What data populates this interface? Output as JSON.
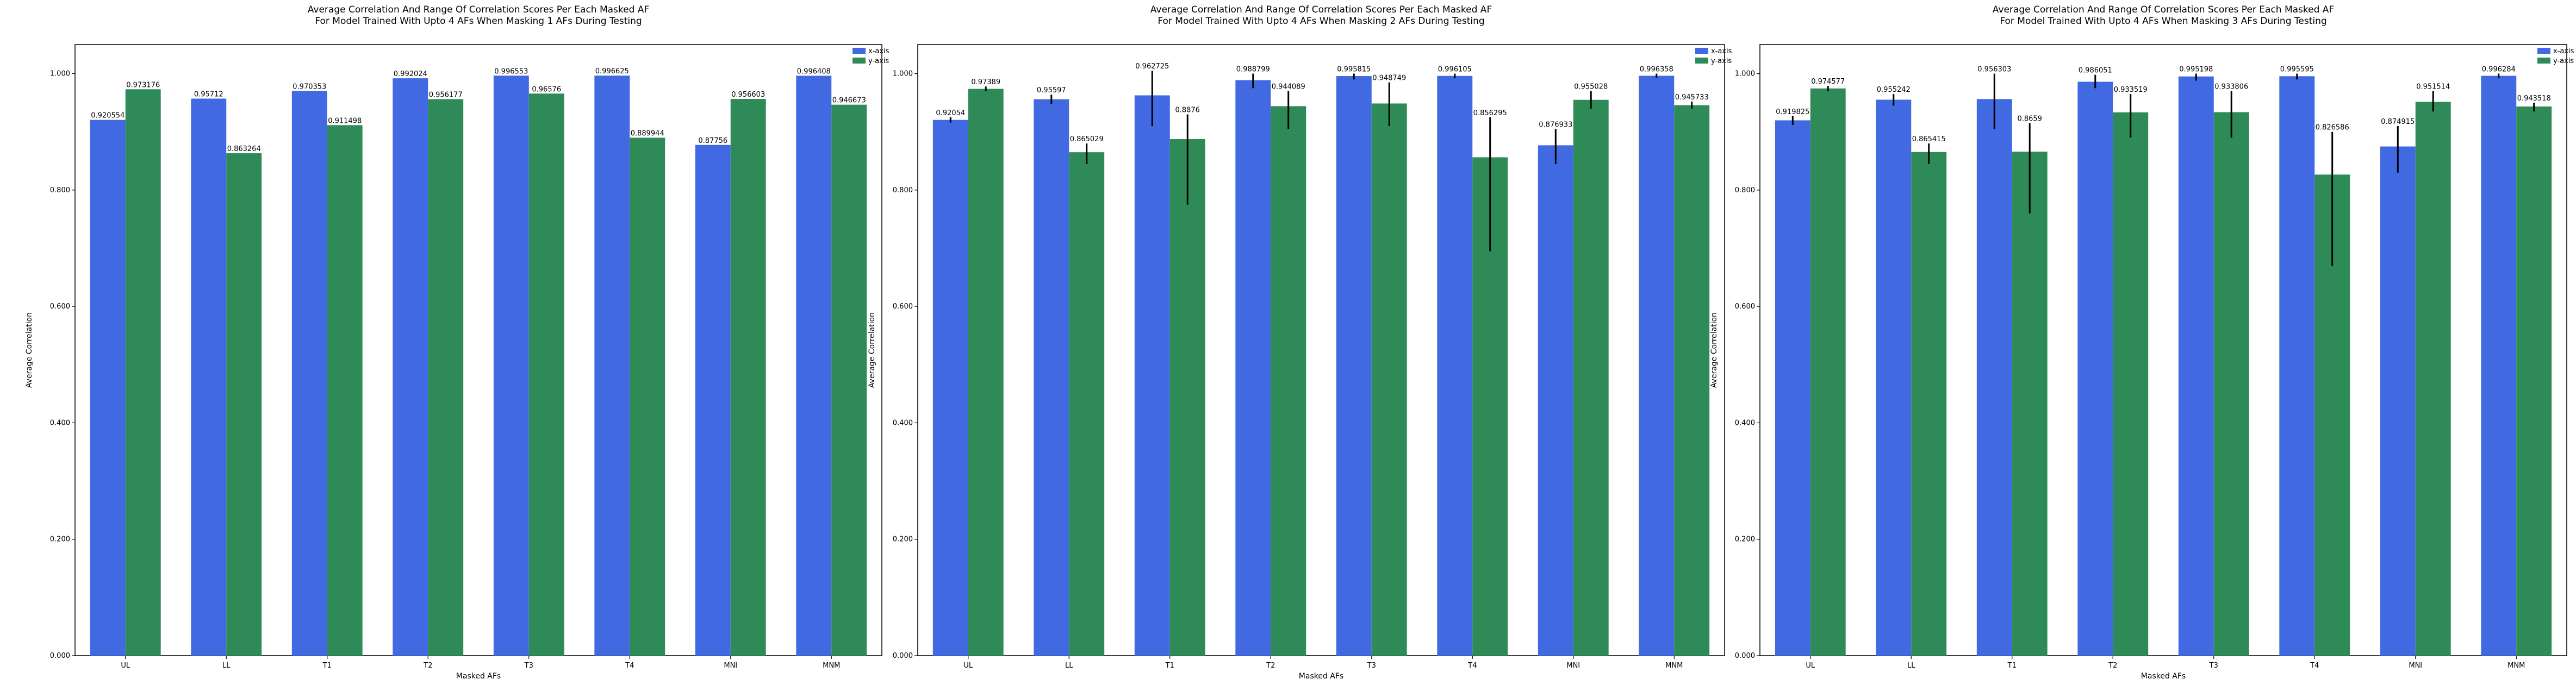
{
  "chart_data": [
    {
      "type": "bar",
      "title": "Average Correlation And Range Of Correlation Scores Per Each Masked AF\nFor Model Trained With Upto 4 AFs When Masking 1 AFs During Testing",
      "xlabel": "Masked AFs",
      "ylabel": "Average Correlation",
      "ylim": [
        0,
        1.05
      ],
      "yticks": [
        "0.000",
        "0.200",
        "0.400",
        "0.600",
        "0.800",
        "1.000"
      ],
      "legend_position": "top-right",
      "categories": [
        "UL",
        "LL",
        "T1",
        "T2",
        "T3",
        "T4",
        "MNI",
        "MNM"
      ],
      "series": [
        {
          "name": "x-axis",
          "color": "#4169e1",
          "values": [
            0.920554,
            0.95712,
            0.970353,
            0.992024,
            0.996553,
            0.996625,
            0.87756,
            0.996408
          ],
          "labels": [
            "0.920554",
            "0.95712",
            "0.970353",
            "0.992024",
            "0.996553",
            "0.996625",
            "0.87756",
            "0.996408"
          ],
          "err_low": [
            0.920554,
            0.95712,
            0.970353,
            0.992024,
            0.996553,
            0.996625,
            0.87756,
            0.996408
          ],
          "err_high": [
            0.920554,
            0.95712,
            0.970353,
            0.992024,
            0.996553,
            0.996625,
            0.87756,
            0.996408
          ]
        },
        {
          "name": "y-axis",
          "color": "#2e8b57",
          "values": [
            0.973176,
            0.863264,
            0.911498,
            0.956177,
            0.96576,
            0.889944,
            0.956603,
            0.946673
          ],
          "labels": [
            "0.973176",
            "0.863264",
            "0.911498",
            "0.956177",
            "0.96576",
            "0.889944",
            "0.956603",
            "0.946673"
          ],
          "err_low": [
            0.973176,
            0.863264,
            0.911498,
            0.956177,
            0.96576,
            0.889944,
            0.956603,
            0.946673
          ],
          "err_high": [
            0.973176,
            0.863264,
            0.911498,
            0.956177,
            0.96576,
            0.889944,
            0.956603,
            0.946673
          ]
        }
      ]
    },
    {
      "type": "bar",
      "title": "Average Correlation And Range Of Correlation Scores Per Each Masked AF\nFor Model Trained With Upto 4 AFs When Masking 2 AFs During Testing",
      "xlabel": "Masked AFs",
      "ylabel": "Average Correlation",
      "ylim": [
        0,
        1.05
      ],
      "yticks": [
        "0.000",
        "0.200",
        "0.400",
        "0.600",
        "0.800",
        "1.000"
      ],
      "legend_position": "top-right",
      "categories": [
        "UL",
        "LL",
        "T1",
        "T2",
        "T3",
        "T4",
        "MNI",
        "MNM"
      ],
      "series": [
        {
          "name": "x-axis",
          "color": "#4169e1",
          "values": [
            0.92054,
            0.95597,
            0.962725,
            0.988799,
            0.995815,
            0.996105,
            0.876933,
            0.996358
          ],
          "labels": [
            "0.92054",
            "0.95597",
            "0.962725",
            "0.988799",
            "0.995815",
            "0.996105",
            "0.876933",
            "0.996358"
          ],
          "err_low": [
            0.916,
            0.948,
            0.91,
            0.975,
            0.99,
            0.992,
            0.845,
            0.993
          ],
          "err_high": [
            0.925,
            0.964,
            1.005,
            1.0,
            1.0,
            1.0,
            0.905,
            1.0
          ]
        },
        {
          "name": "y-axis",
          "color": "#2e8b57",
          "values": [
            0.97389,
            0.865029,
            0.8876,
            0.944089,
            0.948749,
            0.856295,
            0.955028,
            0.945733
          ],
          "labels": [
            "0.97389",
            "0.865029",
            "0.8876",
            "0.944089",
            "0.948749",
            "0.856295",
            "0.955028",
            "0.945733"
          ],
          "err_low": [
            0.97,
            0.845,
            0.775,
            0.905,
            0.91,
            0.695,
            0.94,
            0.94
          ],
          "err_high": [
            0.978,
            0.88,
            0.93,
            0.97,
            0.985,
            0.925,
            0.97,
            0.952
          ]
        }
      ]
    },
    {
      "type": "bar",
      "title": "Average Correlation And Range Of Correlation Scores Per Each Masked AF\nFor Model Trained With Upto 4 AFs When Masking 3 AFs During Testing",
      "xlabel": "Masked AFs",
      "ylabel": "Average Correlation",
      "ylim": [
        0,
        1.05
      ],
      "yticks": [
        "0.000",
        "0.200",
        "0.400",
        "0.600",
        "0.800",
        "1.000"
      ],
      "legend_position": "top-right",
      "categories": [
        "UL",
        "LL",
        "T1",
        "T2",
        "T3",
        "T4",
        "MNI",
        "MNM"
      ],
      "series": [
        {
          "name": "x-axis",
          "color": "#4169e1",
          "values": [
            0.919825,
            0.955242,
            0.956303,
            0.986051,
            0.995198,
            0.995595,
            0.874915,
            0.996284
          ],
          "labels": [
            "0.919825",
            "0.955242",
            "0.956303",
            "0.986051",
            "0.995198",
            "0.995595",
            "0.874915",
            "0.996284"
          ],
          "err_low": [
            0.912,
            0.945,
            0.905,
            0.975,
            0.988,
            0.99,
            0.83,
            0.992
          ],
          "err_high": [
            0.927,
            0.965,
            1.0,
            0.998,
            1.0,
            1.0,
            0.91,
            1.0
          ]
        },
        {
          "name": "y-axis",
          "color": "#2e8b57",
          "values": [
            0.974577,
            0.865415,
            0.8659,
            0.933519,
            0.933806,
            0.826586,
            0.951514,
            0.943518
          ],
          "labels": [
            "0.974577",
            "0.865415",
            "0.8659",
            "0.933519",
            "0.933806",
            "0.826586",
            "0.951514",
            "0.943518"
          ],
          "err_low": [
            0.97,
            0.845,
            0.76,
            0.89,
            0.89,
            0.67,
            0.935,
            0.935
          ],
          "err_high": [
            0.979,
            0.88,
            0.915,
            0.965,
            0.97,
            0.9,
            0.97,
            0.95
          ]
        }
      ]
    }
  ]
}
